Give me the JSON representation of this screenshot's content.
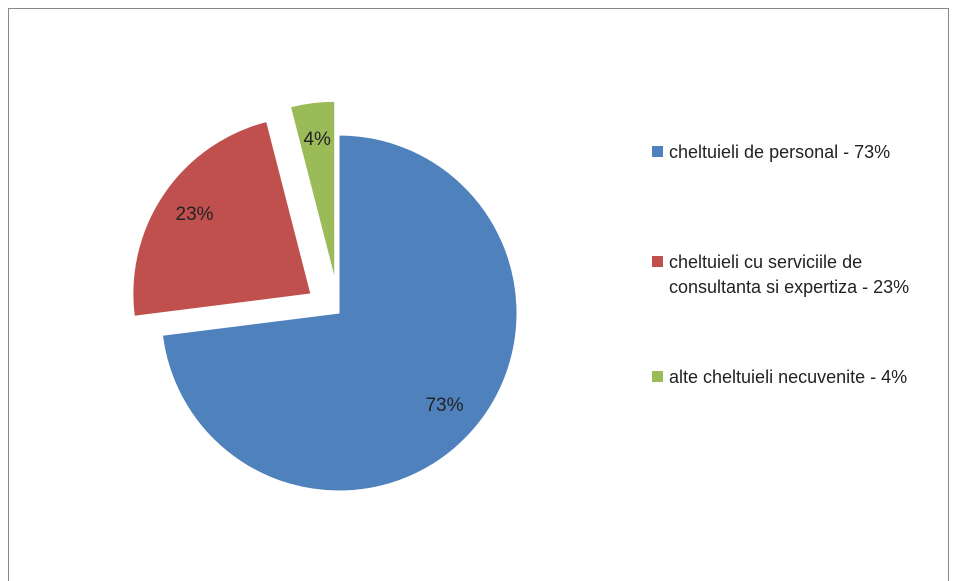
{
  "chart_data": {
    "type": "pie",
    "categories": [
      "cheltuieli de personal - 73%",
      "cheltuieli cu serviciile de consultanta si expertiza - 23%",
      "alte cheltuieli necuvenite - 4%"
    ],
    "values": [
      73,
      23,
      4
    ],
    "value_labels": [
      "73%",
      "23%",
      "4%"
    ],
    "colors": [
      "#4f81bd",
      "#c0504d",
      "#9bbb59"
    ],
    "explode": [
      false,
      true,
      true
    ],
    "legend": "right"
  }
}
